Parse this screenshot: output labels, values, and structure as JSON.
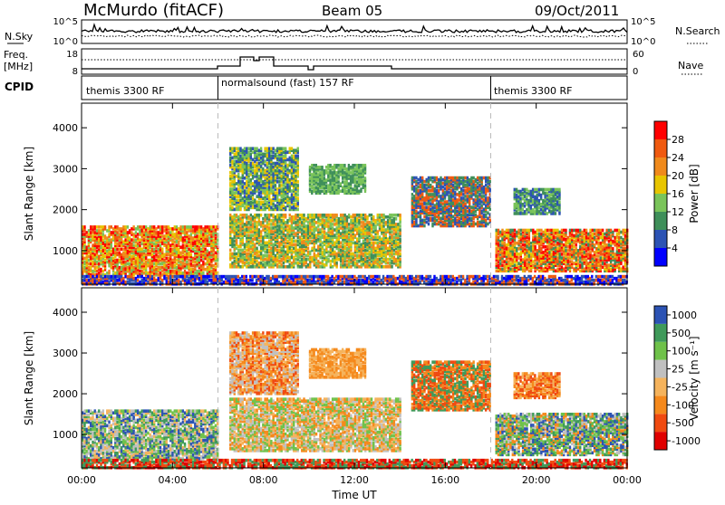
{
  "header": {
    "station": "McMurdo (fitACF)",
    "beam": "Beam 05",
    "date": "09/Oct/2011"
  },
  "noise_panel": {
    "left_label": "N.Sky",
    "left_ticks": [
      "10^5",
      "10^0"
    ],
    "right_label": "N.Search",
    "right_ticks": [
      "10^5",
      "10^0"
    ]
  },
  "freq_panel": {
    "left_label_1": "Freq.",
    "left_label_2": "[MHz]",
    "left_ticks": [
      "18",
      "8"
    ],
    "right_label": "Nave",
    "right_ticks": [
      "60",
      "0"
    ]
  },
  "cpid": {
    "label": "CPID",
    "segments": [
      {
        "text": "themis 3300 RF",
        "start_hour": 0
      },
      {
        "text": "normalsound (fast) 157 RF",
        "start_hour": 6
      },
      {
        "text": "themis 3300 RF",
        "start_hour": 18
      }
    ]
  },
  "colors": {
    "power_scale": [
      "#0000ff",
      "#2c53b4",
      "#3f8f5a",
      "#7ac45a",
      "#e8c500",
      "#f08a1c",
      "#f05a10",
      "#ff0000"
    ],
    "velocity_scale": [
      "#e00000",
      "#f04a10",
      "#f5891c",
      "#f5b35c",
      "#c0c0c0",
      "#6fc24a",
      "#3f9a5a",
      "#2c53b4"
    ]
  },
  "chart_data": {
    "type": "heatmap",
    "xlabel": "Time UT",
    "x_ticks": [
      "00:00",
      "04:00",
      "08:00",
      "12:00",
      "16:00",
      "20:00",
      "00:00"
    ],
    "xlim_hours": [
      0,
      24
    ],
    "panels": [
      {
        "name": "power",
        "ylabel": "Slant Range [km]",
        "y_ticks": [
          "4000",
          "3000",
          "2000",
          "1000"
        ],
        "ylim": [
          180,
          4600
        ],
        "colorbar_label": "Power [dB]",
        "colorbar_ticks": [
          "28",
          "24",
          "20",
          "16",
          "12",
          "8",
          "4"
        ]
      },
      {
        "name": "velocity",
        "ylabel": "Slant Range [km]",
        "y_ticks": [
          "4000",
          "3000",
          "2000",
          "1000"
        ],
        "ylim": [
          180,
          4600
        ],
        "colorbar_label": "Velocity [m s⁻¹]",
        "colorbar_ticks": [
          "1000",
          "500",
          "100",
          "25",
          "-25",
          "-100",
          "-500",
          "-1000"
        ]
      }
    ]
  }
}
